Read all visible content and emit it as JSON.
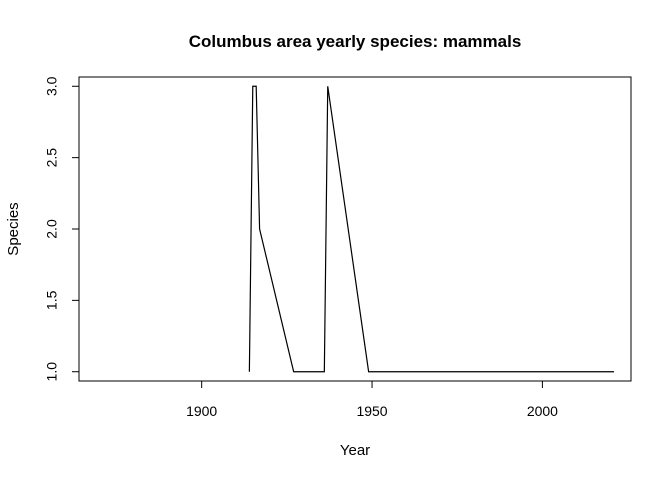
{
  "chart_data": {
    "type": "line",
    "title": "Columbus area yearly species: mammals",
    "xlabel": "Year",
    "ylabel": "Species",
    "xlim": [
      1864,
      2026
    ],
    "ylim": [
      0.935,
      3.065
    ],
    "x_ticks": [
      1900,
      1950,
      2000
    ],
    "y_ticks": [
      1.0,
      1.5,
      2.0,
      2.5,
      3.0
    ],
    "x_tick_labels": [
      "1900",
      "1950",
      "2000"
    ],
    "y_tick_labels": [
      "1.0",
      "1.5",
      "2.0",
      "2.5",
      "3.0"
    ],
    "grid": false,
    "line_color": "#000000",
    "series": [
      {
        "x": [
          1914,
          1915,
          1916,
          1917,
          1927,
          1936,
          1937,
          1949,
          2021
        ],
        "y": [
          1,
          3,
          3,
          2,
          1,
          1,
          3,
          1,
          1
        ]
      }
    ]
  }
}
